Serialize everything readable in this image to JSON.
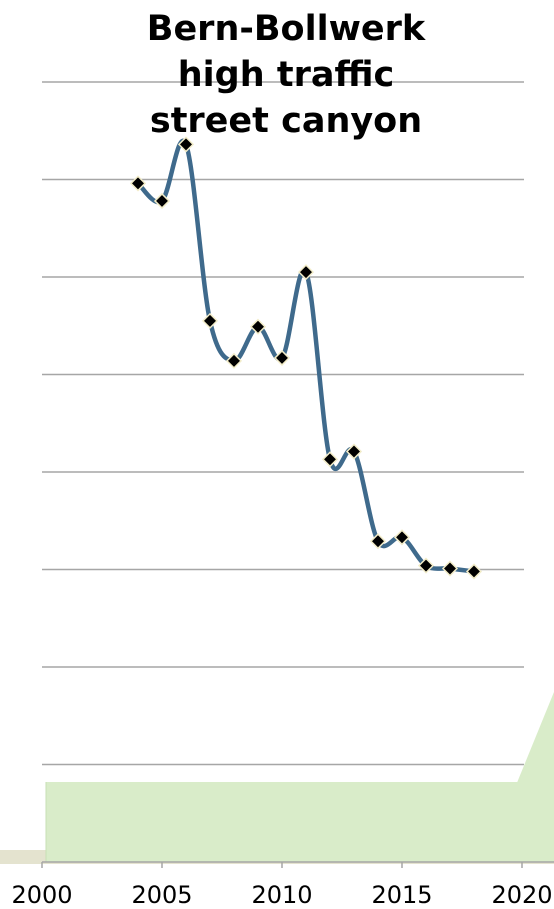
{
  "chart_data": {
    "type": "line",
    "title_lines": [
      "Bern-Bollwerk",
      "high traffic",
      "street canyon"
    ],
    "xlabel": "",
    "ylabel": "",
    "x": [
      2004,
      2005,
      2006,
      2007,
      2008,
      2009,
      2010,
      2011,
      2012,
      2013,
      2014,
      2015,
      2016,
      2017,
      2018
    ],
    "series": [
      {
        "values": [
          69.6,
          67.8,
          73.6,
          55.5,
          51.4,
          54.9,
          51.7,
          60.5,
          41.3,
          42.1,
          32.9,
          33.3,
          30.4,
          30.1,
          29.8
        ]
      }
    ],
    "xlim": [
      2000,
      2020
    ],
    "ylim": [
      0,
      80
    ],
    "y_gridlines": [
      10,
      20,
      30,
      40,
      50,
      60,
      70,
      80
    ],
    "x_ticks": [
      "2000",
      "2005",
      "2010",
      "2015",
      "2020"
    ],
    "grid": true,
    "colors": {
      "line": "#3f6a8c",
      "marker": "#000000",
      "marker_edge": "#f2ecc8",
      "grid": "#a6a6a6",
      "band_fill": "#d9ecc9",
      "ground_fill": "#e4e3cf"
    }
  }
}
